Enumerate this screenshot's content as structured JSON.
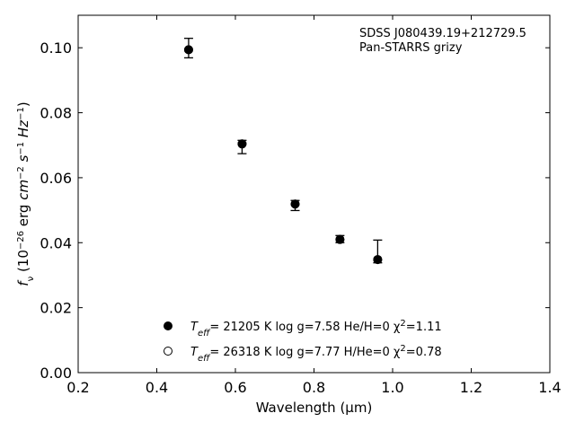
{
  "chart_data": {
    "type": "scatter",
    "xlabel": "Wavelength (μm)",
    "ylabel_parts": [
      "f",
      "ν",
      " (10",
      "−26",
      " erg ",
      "cm",
      "−2",
      " ",
      "s",
      "−1",
      " ",
      "Hz",
      "−1",
      ")"
    ],
    "xlim": [
      0.2,
      1.4
    ],
    "ylim": [
      0.0,
      0.11
    ],
    "x_ticks": [
      "0.2",
      "0.4",
      "0.6",
      "0.8",
      "1.0",
      "1.2",
      "1.4"
    ],
    "y_ticks": [
      "0.00",
      "0.02",
      "0.04",
      "0.06",
      "0.08",
      "0.10"
    ],
    "annotation": [
      "SDSS J080439.19+212729.5",
      "Pan-STARRS grizy"
    ],
    "legend_placement": "bottom-center",
    "grid": false,
    "series": [
      {
        "label_parts": [
          "T",
          "eff",
          "= 21205 K  log g=7.58  He/H=0  χ",
          "2",
          "=1.11"
        ],
        "marker": "filled-circle",
        "color": "#000000",
        "points": [
          {
            "x": 0.481,
            "y": 0.0994,
            "err_low": 0.0025,
            "err_high": 0.0035
          },
          {
            "x": 0.617,
            "y": 0.0704,
            "err_low": 0.003,
            "err_high": 0.0011
          },
          {
            "x": 0.752,
            "y": 0.0519,
            "err_low": 0.002,
            "err_high": 0.0011
          },
          {
            "x": 0.866,
            "y": 0.041,
            "err_low": 0.001,
            "err_high": 0.0012
          },
          {
            "x": 0.962,
            "y": 0.0348,
            "err_low": 0.001,
            "err_high": 0.006
          }
        ]
      },
      {
        "label_parts": [
          "T",
          "eff",
          "= 26318 K  log g=7.77  H/He=0  χ",
          "2",
          "=0.78"
        ],
        "marker": "open-circle",
        "color": "#000000",
        "points": [
          {
            "x": 0.481,
            "y": 0.0994
          },
          {
            "x": 0.617,
            "y": 0.0704
          },
          {
            "x": 0.752,
            "y": 0.0519
          },
          {
            "x": 0.866,
            "y": 0.041
          },
          {
            "x": 0.962,
            "y": 0.0348
          }
        ]
      }
    ]
  }
}
